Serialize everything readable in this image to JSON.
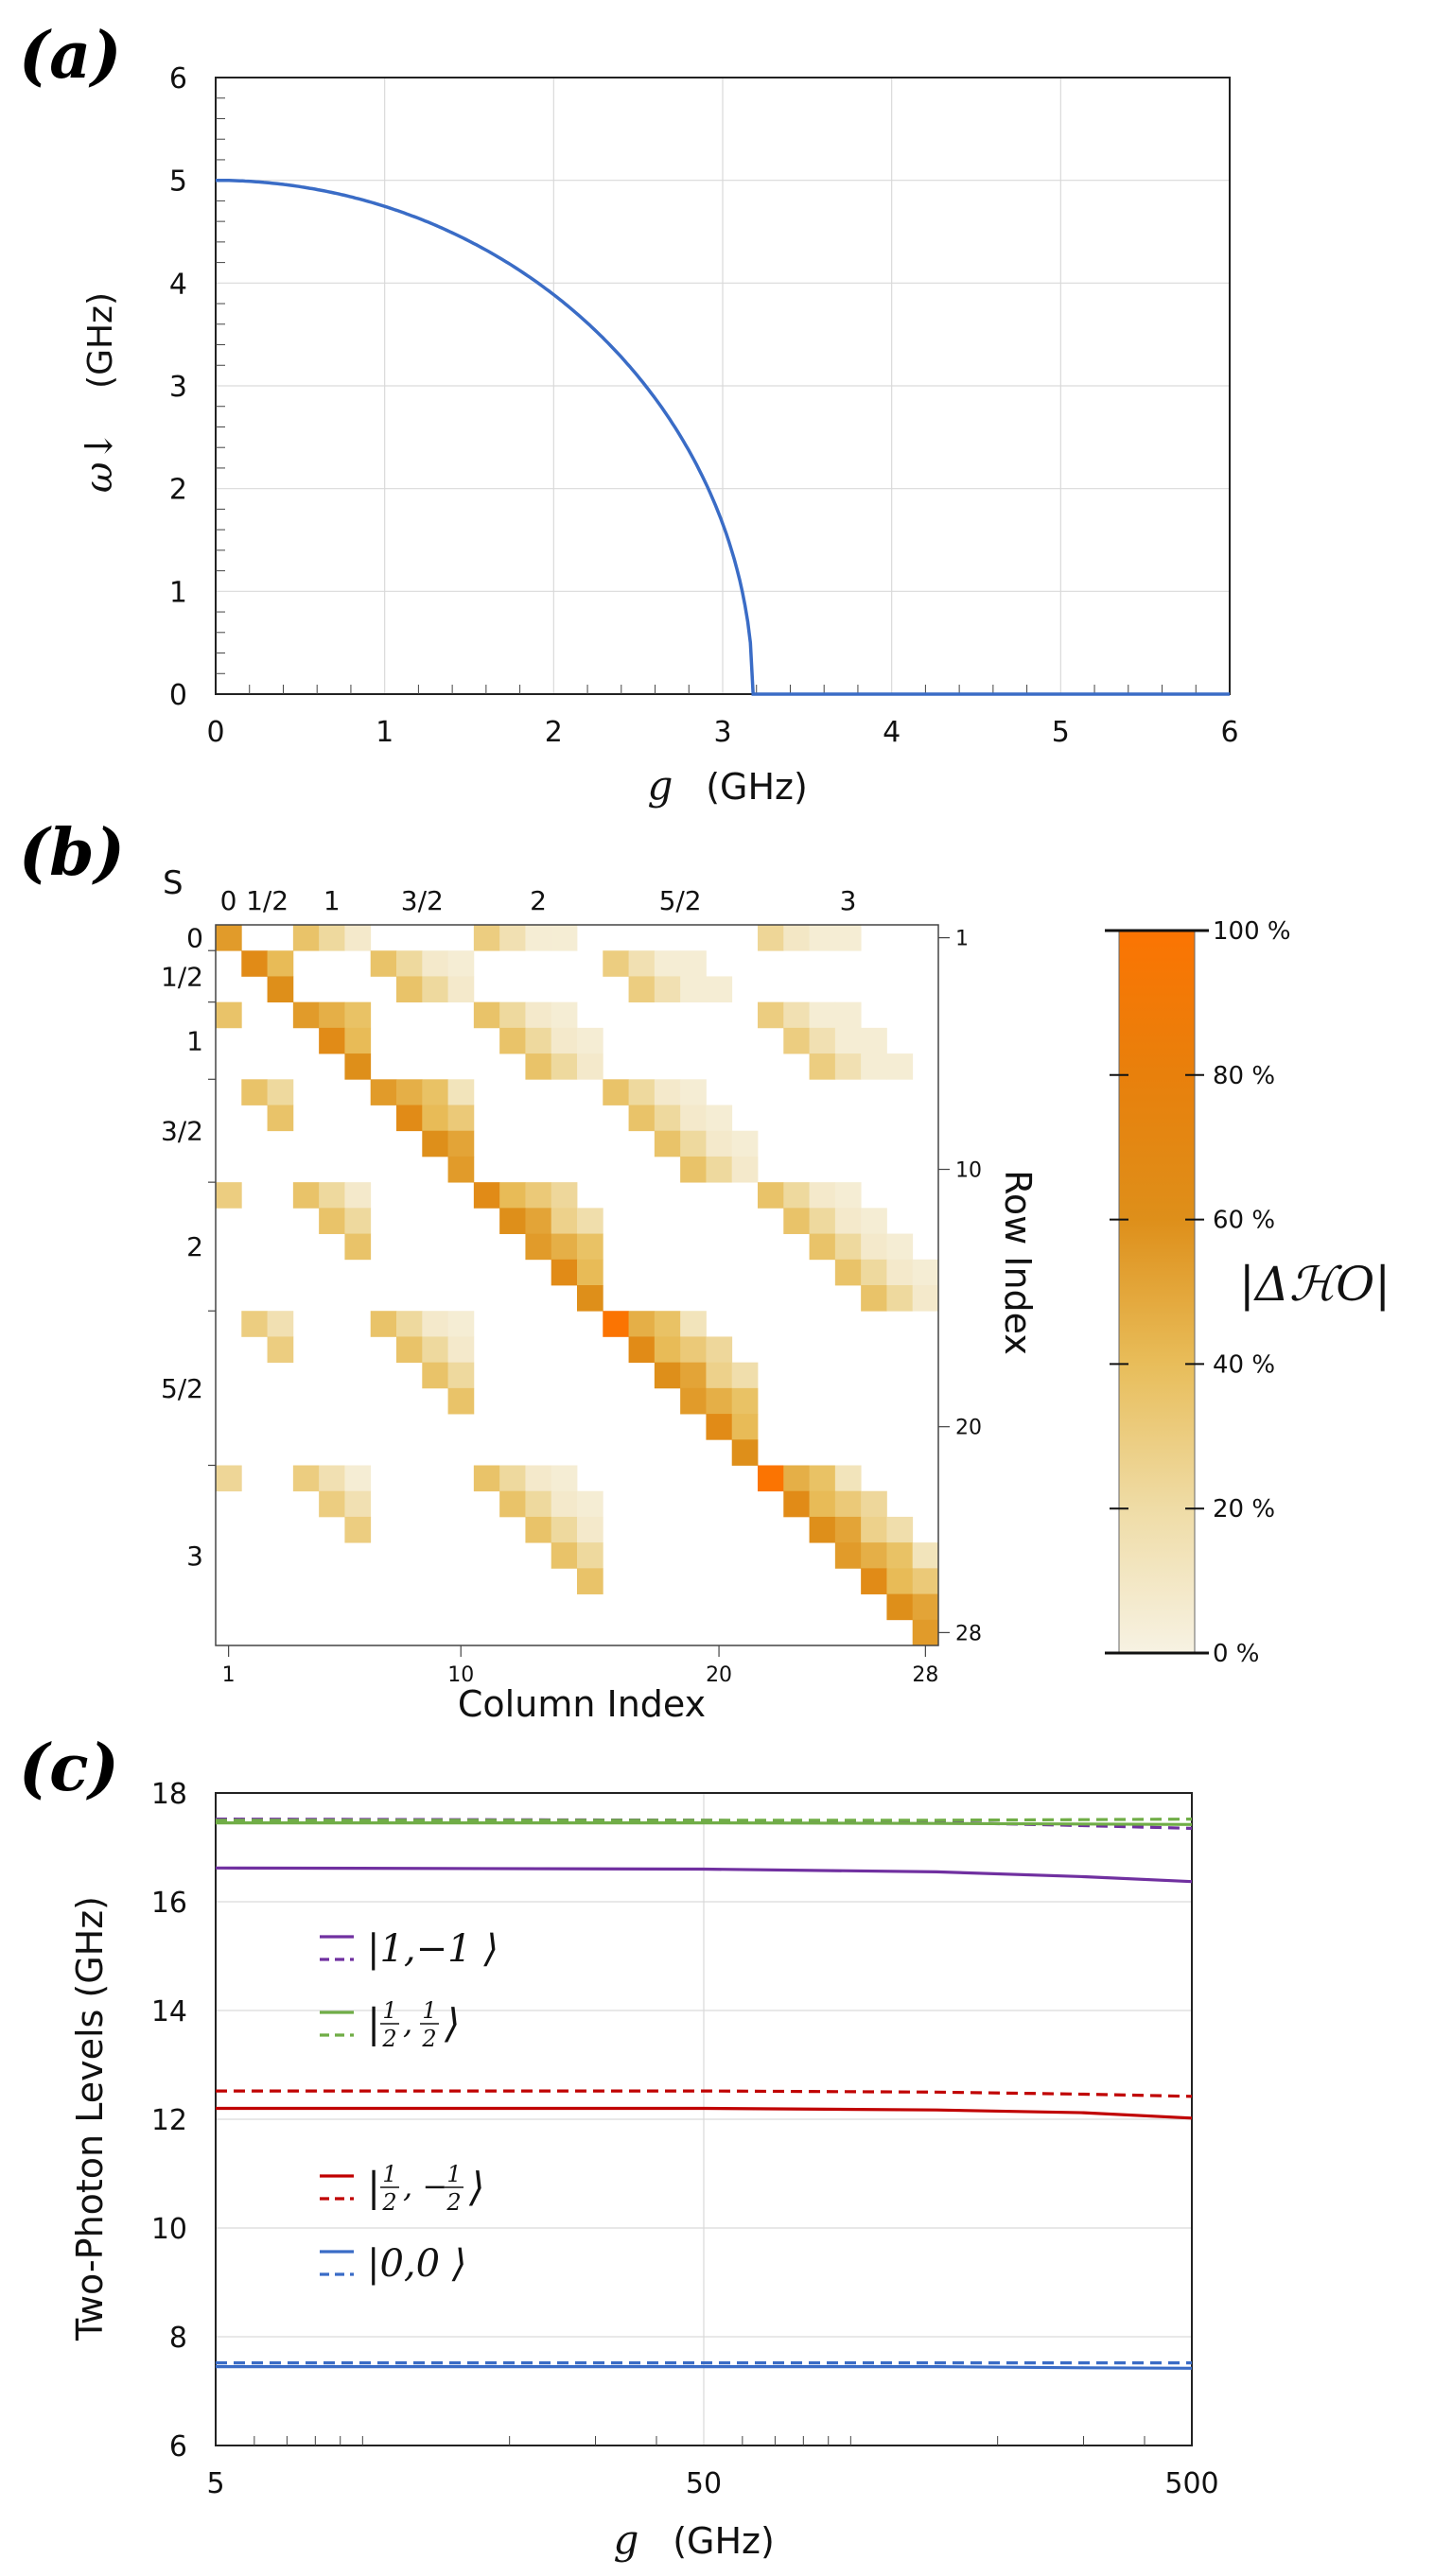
{
  "figure": {
    "panel_labels": [
      "(a)",
      "(b)",
      "(c)"
    ]
  },
  "chart_data": [
    {
      "id": "a",
      "type": "line",
      "title": "",
      "xlabel_var": "g",
      "xlabel_unit": "(GHz)",
      "ylabel_var": "ω↓",
      "ylabel_unit": "(GHz)",
      "xlim": [
        0,
        6
      ],
      "ylim": [
        0,
        6
      ],
      "xticks": [
        0,
        1,
        2,
        3,
        4,
        5,
        6
      ],
      "yticks": [
        0,
        1,
        2,
        3,
        4,
        5,
        6
      ],
      "grid": true,
      "series": [
        {
          "name": "ω↓",
          "color": "#3a6cc6",
          "description": "quarter-ellipse from (0,5) to (3.18,0), then zero",
          "points": [
            [
              0,
              5.0
            ],
            [
              0.5,
              4.94
            ],
            [
              1.0,
              4.75
            ],
            [
              1.5,
              4.41
            ],
            [
              2.0,
              3.89
            ],
            [
              2.5,
              3.09
            ],
            [
              2.8,
              2.37
            ],
            [
              3.0,
              1.66
            ],
            [
              3.1,
              1.11
            ],
            [
              3.15,
              0.69
            ],
            [
              3.18,
              0.0
            ],
            [
              6.0,
              0.0
            ]
          ]
        }
      ]
    },
    {
      "id": "b",
      "type": "heatmap",
      "title": "",
      "xlabel": "Column Index",
      "ylabel": "Row Index",
      "spin_header": "S",
      "spin_labels": [
        "0",
        "1/2",
        "1",
        "3/2",
        "2",
        "5/2",
        "3"
      ],
      "block_sizes": [
        1,
        2,
        3,
        4,
        5,
        6,
        7
      ],
      "xticks": [
        1,
        10,
        20,
        28
      ],
      "yticks": [
        1,
        10,
        20,
        28
      ],
      "size": 28,
      "colorbar": {
        "label": "|ΔℋO|",
        "ticks": [
          "0 %",
          "20 %",
          "40 %",
          "60 %",
          "80 %",
          "100 %"
        ],
        "colors": [
          "#f7f2e3",
          "#efdca6",
          "#e8bd5a",
          "#de8f1a",
          "#e8800c",
          "#fb7402"
        ]
      }
    },
    {
      "id": "c",
      "type": "line",
      "title": "",
      "xscale": "log",
      "xlabel_var": "g",
      "xlabel_unit": "(GHz)",
      "ylabel": "Two-Photon Levels  (GHz)",
      "xlim": [
        5,
        500
      ],
      "ylim": [
        6,
        18
      ],
      "xticks": [
        5,
        50,
        500
      ],
      "yticks": [
        6,
        8,
        10,
        12,
        14,
        16,
        18
      ],
      "grid": true,
      "series": [
        {
          "name": "|1,−1⟩ solid",
          "color": "#7030a0",
          "dash": false,
          "x": [
            5,
            50,
            150,
            300,
            500
          ],
          "y": [
            16.62,
            16.6,
            16.55,
            16.46,
            16.37
          ]
        },
        {
          "name": "|1,−1⟩ dashed",
          "color": "#7030a0",
          "dash": true,
          "x": [
            5,
            50,
            150,
            300,
            500
          ],
          "y": [
            17.52,
            17.5,
            17.46,
            17.4,
            17.35
          ]
        },
        {
          "name": "|½,½⟩ solid",
          "color": "#70ad47",
          "dash": false,
          "x": [
            5,
            50,
            150,
            300,
            500
          ],
          "y": [
            17.45,
            17.45,
            17.44,
            17.43,
            17.42
          ]
        },
        {
          "name": "|½,½⟩ dashed",
          "color": "#70ad47",
          "dash": true,
          "x": [
            5,
            50,
            150,
            300,
            500
          ],
          "y": [
            17.5,
            17.5,
            17.5,
            17.51,
            17.52
          ]
        },
        {
          "name": "|½,−½⟩ solid",
          "color": "#c00000",
          "dash": false,
          "x": [
            5,
            50,
            150,
            300,
            500
          ],
          "y": [
            12.2,
            12.2,
            12.17,
            12.12,
            12.02
          ]
        },
        {
          "name": "|½,−½⟩ dashed",
          "color": "#c00000",
          "dash": true,
          "x": [
            5,
            50,
            150,
            300,
            500
          ],
          "y": [
            12.52,
            12.52,
            12.5,
            12.46,
            12.42
          ]
        },
        {
          "name": "|0,0⟩ solid",
          "color": "#3a6cc6",
          "dash": false,
          "x": [
            5,
            50,
            150,
            300,
            500
          ],
          "y": [
            7.45,
            7.45,
            7.45,
            7.43,
            7.42
          ]
        },
        {
          "name": "|0,0⟩ dashed",
          "color": "#3a6cc6",
          "dash": true,
          "x": [
            5,
            50,
            150,
            300,
            500
          ],
          "y": [
            7.52,
            7.52,
            7.52,
            7.52,
            7.52
          ]
        }
      ],
      "legend": [
        {
          "label_prefix": "|1,−1",
          "color": "#7030a0",
          "frac": false
        },
        {
          "label_prefix": "|",
          "color": "#70ad47",
          "frac": true,
          "a": "1",
          "b": "2",
          "c": "1",
          "d": "2",
          "sep": ","
        },
        {
          "label_prefix": "|",
          "color": "#c00000",
          "frac": true,
          "a": "1",
          "b": "2",
          "c": "1",
          "d": "2",
          "sep": ", −"
        },
        {
          "label_prefix": "|0,0",
          "color": "#3a6cc6",
          "frac": false
        }
      ]
    }
  ]
}
